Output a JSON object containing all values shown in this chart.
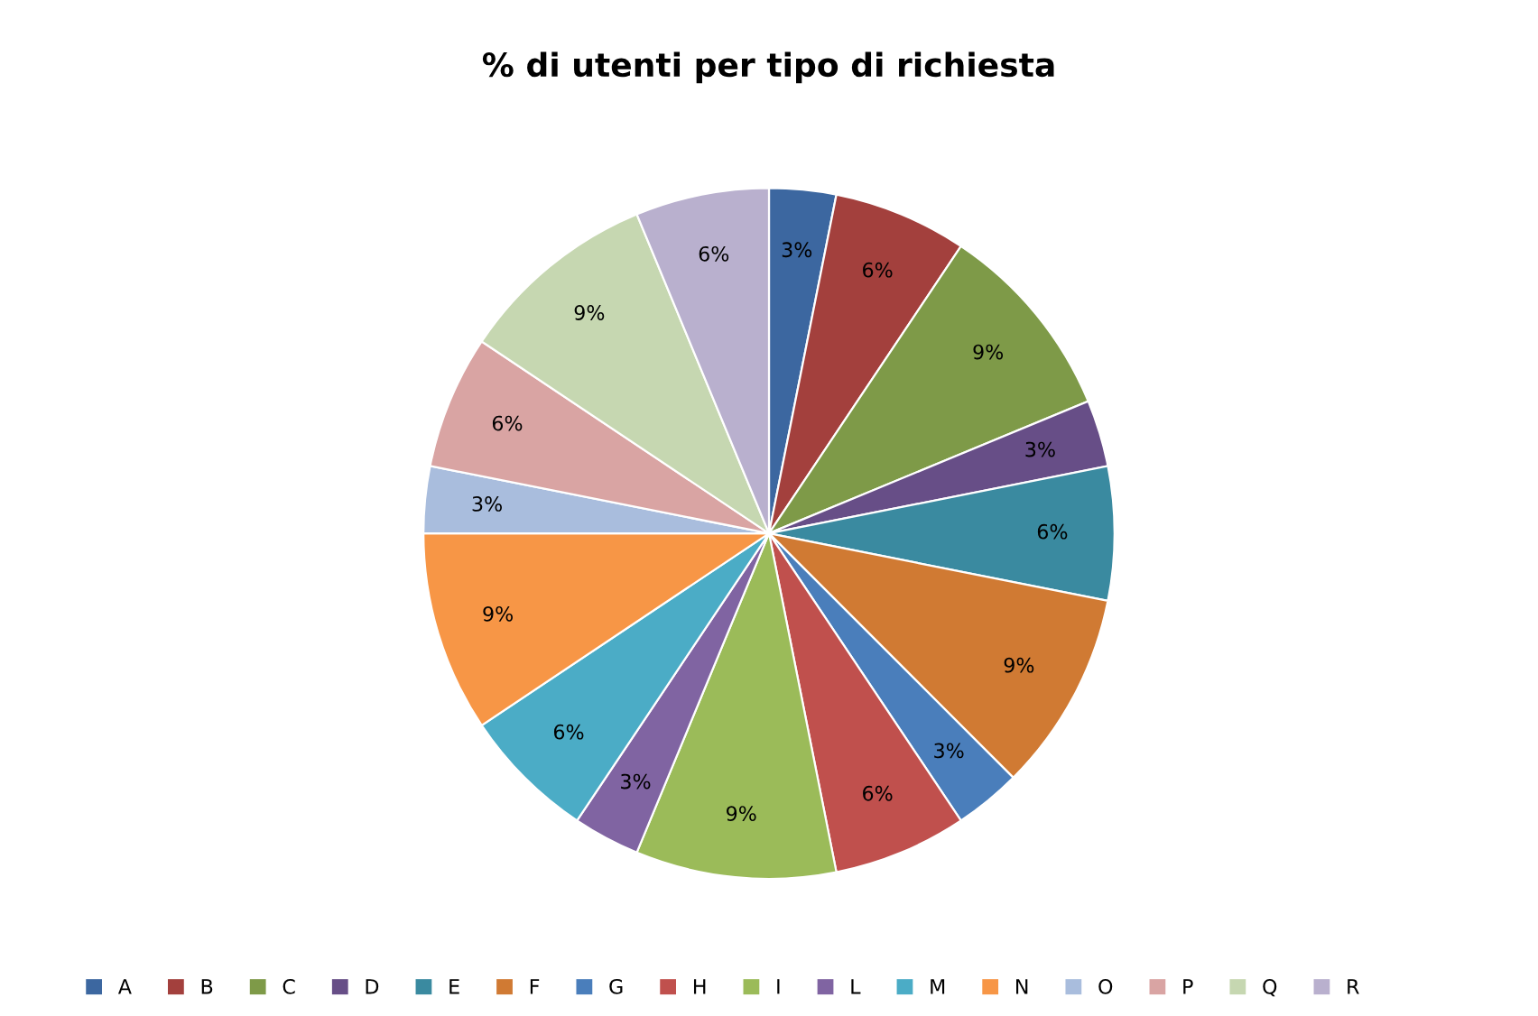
{
  "chart_data": {
    "type": "pie",
    "title": "% di utenti per tipo di richiesta",
    "categories": [
      "A",
      "B",
      "C",
      "D",
      "E",
      "F",
      "G",
      "H",
      "I",
      "L",
      "M",
      "N",
      "O",
      "P",
      "Q",
      "R"
    ],
    "values": [
      3.125,
      6.25,
      9.375,
      3.125,
      6.25,
      9.375,
      3.125,
      6.25,
      9.375,
      3.125,
      6.25,
      9.375,
      3.125,
      6.25,
      9.375,
      6.25
    ],
    "value_labels": [
      "3%",
      "6%",
      "9%",
      "3%",
      "6%",
      "9%",
      "3%",
      "6%",
      "9%",
      "3%",
      "6%",
      "9%",
      "3%",
      "6%",
      "9%",
      "6%"
    ],
    "colors": [
      "#3c67a0",
      "#a3403d",
      "#7e9a48",
      "#674e87",
      "#3a8aa0",
      "#d07a33",
      "#4a7ebb",
      "#c0504d",
      "#9bbb59",
      "#8064a2",
      "#4bacc6",
      "#f79646",
      "#a9bddd",
      "#d9a4a3",
      "#c6d7b1",
      "#b9b0ce"
    ],
    "legend": "bottom"
  }
}
